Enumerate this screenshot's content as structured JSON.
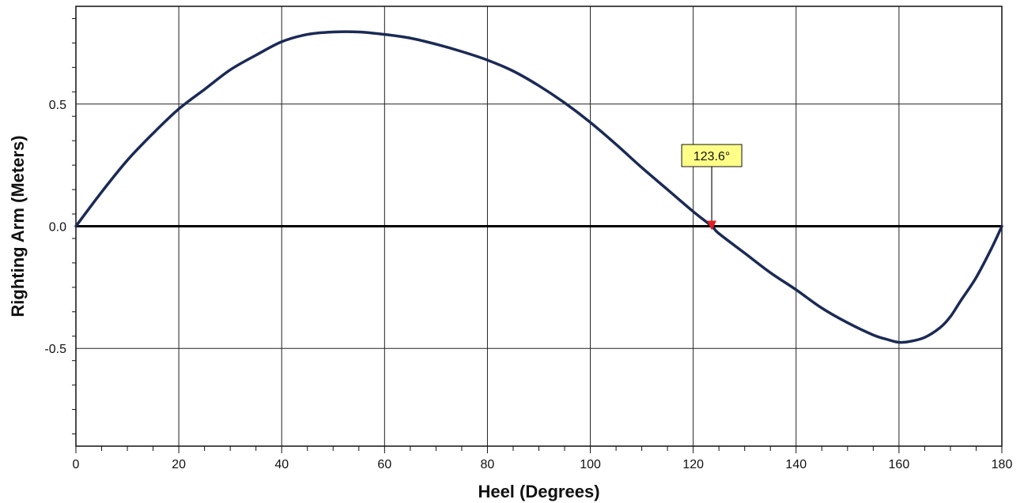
{
  "chart_data": {
    "type": "line",
    "title": "",
    "xlabel": "Heel (Degrees)",
    "ylabel": "Righting Arm (Meters)",
    "xlim": [
      0,
      180
    ],
    "ylim": [
      -0.9,
      0.9
    ],
    "x_ticks": [
      0,
      20,
      40,
      60,
      80,
      100,
      120,
      140,
      160,
      180
    ],
    "x_tick_labels": [
      "0",
      "20",
      "40",
      "60",
      "80",
      "100",
      "120",
      "140",
      "160",
      "180"
    ],
    "y_ticks": [
      0.5,
      0.0,
      -0.5
    ],
    "y_tick_labels": [
      "0.5",
      "0.0",
      "-0.5"
    ],
    "grid": true,
    "legend": "none",
    "series": [
      {
        "color": "#1b2a55",
        "x": [
          0,
          5,
          10,
          15,
          20,
          25,
          30,
          35,
          40,
          45,
          50,
          55,
          60,
          65,
          70,
          75,
          80,
          85,
          90,
          95,
          100,
          105,
          110,
          115,
          120,
          123.6,
          125,
          130,
          135,
          140,
          145,
          150,
          155,
          158,
          160,
          162,
          165,
          168,
          170,
          172,
          175,
          178,
          180
        ],
        "y": [
          0.0,
          0.14,
          0.27,
          0.38,
          0.48,
          0.56,
          0.64,
          0.7,
          0.755,
          0.785,
          0.795,
          0.795,
          0.785,
          0.77,
          0.745,
          0.715,
          0.68,
          0.635,
          0.575,
          0.505,
          0.425,
          0.335,
          0.24,
          0.15,
          0.06,
          0.0,
          -0.03,
          -0.11,
          -0.19,
          -0.26,
          -0.335,
          -0.395,
          -0.445,
          -0.465,
          -0.475,
          -0.472,
          -0.455,
          -0.415,
          -0.37,
          -0.305,
          -0.21,
          -0.09,
          0.0
        ]
      }
    ],
    "marker": {
      "x": 123.6,
      "y": 0.0,
      "label": "123.6°",
      "color": "#e02020",
      "label_bg": "#ffff88"
    }
  }
}
